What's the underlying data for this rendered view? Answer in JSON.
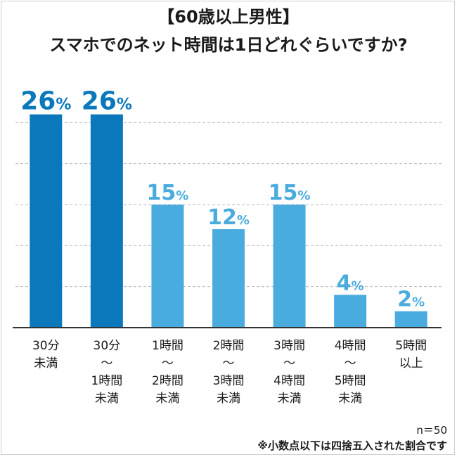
{
  "title": {
    "line1": "【60歳以上男性】",
    "line2": "スマホでのネット時間は1日どれぐらいですか?"
  },
  "chart_data": {
    "type": "bar",
    "categories": [
      [
        "30分",
        "未満"
      ],
      [
        "30分",
        "〜",
        "1時間",
        "未満"
      ],
      [
        "1時間",
        "〜",
        "2時間",
        "未満"
      ],
      [
        "2時間",
        "〜",
        "3時間",
        "未満"
      ],
      [
        "3時間",
        "〜",
        "4時間",
        "未満"
      ],
      [
        "4時間",
        "〜",
        "5時間",
        "未満"
      ],
      [
        "5時間",
        "以上"
      ]
    ],
    "values": [
      26,
      26,
      15,
      12,
      15,
      4,
      2
    ],
    "value_suffix": "%",
    "ylim": [
      0,
      30
    ],
    "grid": true,
    "legend": "none",
    "colors": {
      "highlight": "#0a78bb",
      "normal": "#4aabde",
      "grid": "#b9b9b9",
      "axis": "#333333"
    },
    "highlight_indices": [
      0,
      1
    ]
  },
  "notes": {
    "sample_size": "n＝50",
    "rounding": "※小数点以下は四捨五入された割合です"
  }
}
